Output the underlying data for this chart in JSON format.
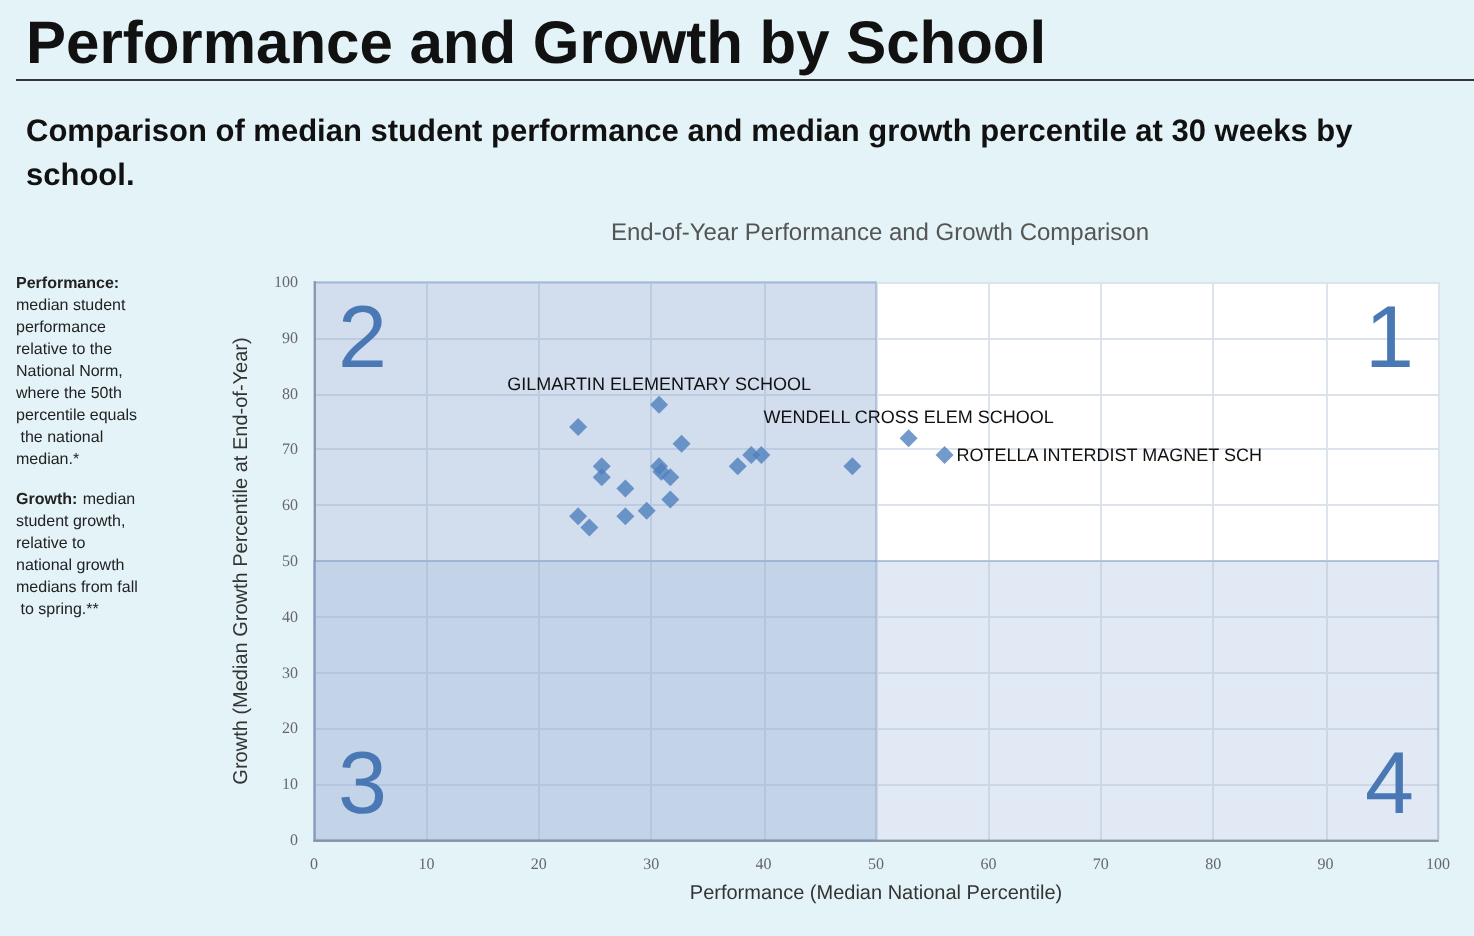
{
  "chart_data": {
    "type": "scatter",
    "title": "Performance and Growth by School",
    "subtitle": "Comparison of median student performance and median growth percentile at 30 weeks by school.",
    "xlabel": "Performance (Median National Percentile)",
    "ylabel": "Growth (Median Growth Percentile at End-of-Year)",
    "annotations": [
      "End-of-Year Performance and Growth Comparison",
      "Performance: median student performance relative to the National Norm, where the 50th percentile equals the national median.*",
      "Growth: median student growth, relative to national growth medians from fall to spring.**",
      "1",
      "2",
      "3",
      "4",
      {
        "text": "GILMARTIN ELEMENTARY SCHOOL",
        "x": 30.7,
        "y": 78
      },
      {
        "text": "WENDELL CROSS ELEM SCHOOL",
        "x": 52.9,
        "y": 72
      },
      {
        "text": "ROTELLA INTERDIST MAGNET SCH",
        "x": 56.1,
        "y": 69
      }
    ],
    "series": [
      {
        "color": "#4f81bd",
        "x": [
          23.5,
          30.7,
          32.7,
          25.6,
          25.6,
          27.7,
          30.7,
          30.9,
          31.7,
          37.7,
          38.9,
          39.8,
          47.9,
          23.5,
          24.5,
          27.7,
          29.6,
          31.7,
          52.9,
          56.1
        ],
        "values": [
          74,
          78,
          71,
          67,
          65,
          63,
          67,
          66,
          65,
          67,
          69,
          69,
          67,
          58,
          56,
          58,
          59,
          61,
          72,
          69
        ]
      }
    ],
    "xlim": [
      0,
      100
    ],
    "xticks": [
      0,
      10,
      20,
      30,
      40,
      50,
      60,
      70,
      80,
      90,
      100
    ],
    "ylim": [
      0,
      100
    ],
    "yticks": [
      0,
      10,
      20,
      30,
      40,
      50,
      60,
      70,
      80,
      90,
      100
    ],
    "grid": true,
    "marker": "diamond",
    "bands": [
      {
        "axis": "x",
        "from": 0,
        "to": 50,
        "color": "#7f9ecb"
      },
      {
        "axis": "y",
        "from": 0,
        "to": 50,
        "color": "#a9c0df"
      }
    ]
  }
}
